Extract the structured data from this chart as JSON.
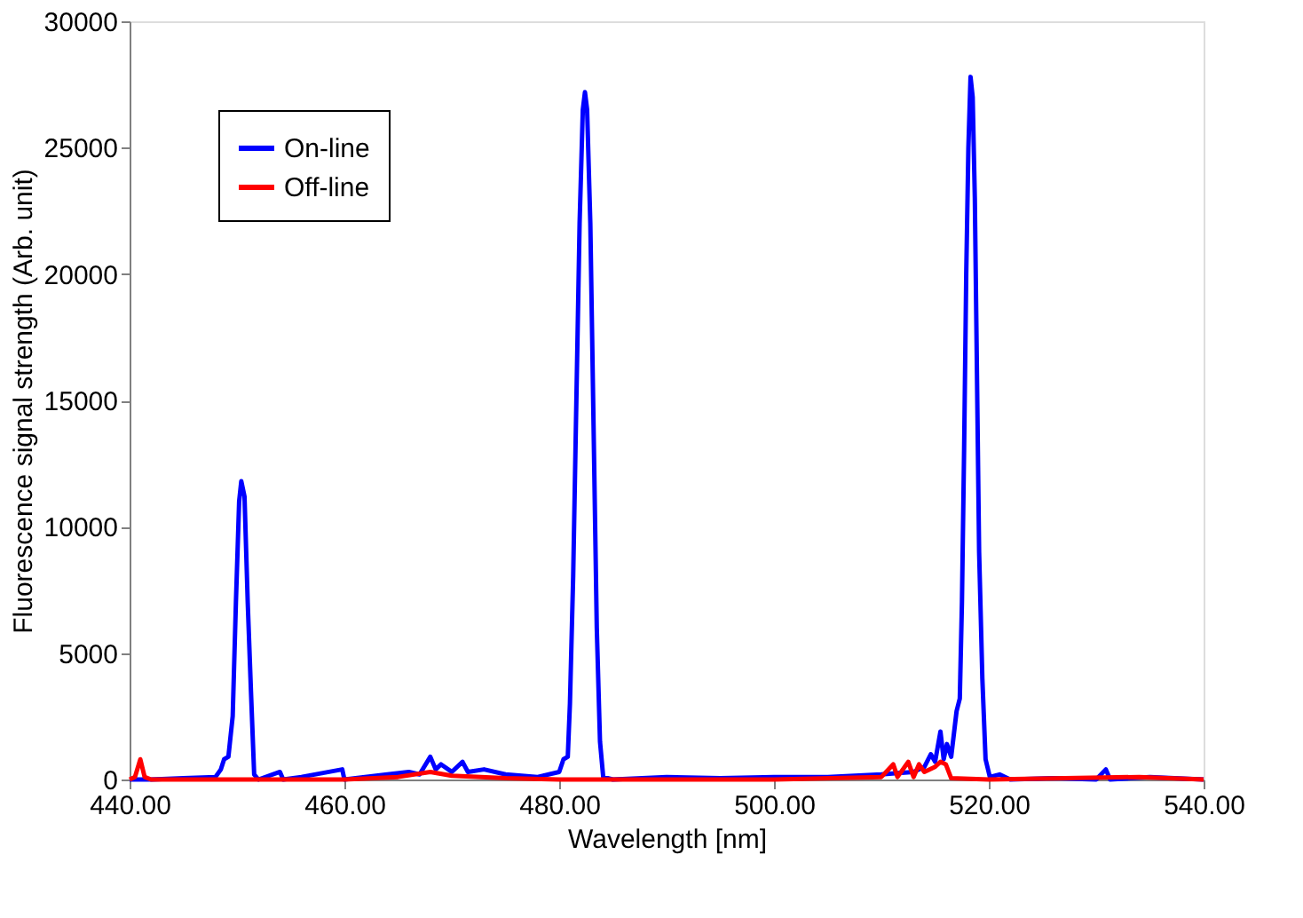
{
  "chart_data": {
    "type": "line",
    "xlabel": "Wavelength [nm]",
    "ylabel": "Fluorescence signal strength (Arb. unit)",
    "xlim": [
      440,
      540
    ],
    "ylim": [
      0,
      30000
    ],
    "xticks": [
      {
        "value": 440,
        "label": "440.00"
      },
      {
        "value": 460,
        "label": "460.00"
      },
      {
        "value": 480,
        "label": "480.00"
      },
      {
        "value": 500,
        "label": "500.00"
      },
      {
        "value": 520,
        "label": "520.00"
      },
      {
        "value": 540,
        "label": "540.00"
      }
    ],
    "yticks": [
      0,
      5000,
      10000,
      15000,
      20000,
      25000,
      30000
    ],
    "grid": false,
    "legend": "top left",
    "marker": "none",
    "line_style": "solid",
    "series": [
      {
        "name": "On-line",
        "color": "#0000ff",
        "x": [
          440,
          442,
          445,
          448,
          448.5,
          448.8,
          449.2,
          449.6,
          449.9,
          450.2,
          450.4,
          450.7,
          451.0,
          451.3,
          451.6,
          452,
          454,
          454.3,
          456,
          459.8,
          460,
          464,
          466,
          467,
          468,
          468.5,
          469,
          470,
          471,
          471.5,
          473,
          475,
          478,
          480,
          480.4,
          480.8,
          481.0,
          481.3,
          481.6,
          481.9,
          482.2,
          482.4,
          482.6,
          482.9,
          483.2,
          483.5,
          483.8,
          484.1,
          485,
          490,
          495,
          500,
          505,
          510,
          513,
          514,
          514.6,
          515,
          515.5,
          515.8,
          516.1,
          516.5,
          517,
          517.3,
          517.5,
          517.7,
          517.9,
          518.1,
          518.3,
          518.5,
          518.7,
          518.9,
          519.1,
          519.4,
          519.7,
          520.1,
          521,
          522,
          526,
          530,
          530.9,
          531.3,
          535,
          540
        ],
        "values": [
          0,
          0,
          50,
          100,
          400,
          800,
          900,
          2500,
          7000,
          11000,
          11800,
          11200,
          7000,
          3500,
          200,
          0,
          300,
          0,
          100,
          400,
          0,
          200,
          300,
          200,
          900,
          400,
          600,
          300,
          700,
          300,
          400,
          200,
          100,
          300,
          800,
          900,
          3000,
          8000,
          15000,
          22000,
          26500,
          27200,
          26500,
          22000,
          14000,
          6000,
          1500,
          100,
          0,
          100,
          50,
          100,
          100,
          200,
          300,
          500,
          1000,
          700,
          1900,
          800,
          1400,
          900,
          2700,
          3200,
          7000,
          13000,
          20000,
          25000,
          27800,
          27000,
          23000,
          16000,
          9000,
          4000,
          800,
          100,
          200,
          0,
          50,
          0,
          400,
          0,
          100,
          0
        ]
      },
      {
        "name": "Off-line",
        "color": "#ff0000",
        "x": [
          440,
          440.5,
          441,
          441.4,
          442,
          460,
          465,
          468,
          470,
          475,
          480,
          500,
          510,
          511.1,
          511.5,
          512.5,
          513,
          513.5,
          514,
          515,
          515.5,
          516,
          516.5,
          520,
          534,
          540
        ],
        "values": [
          0,
          100,
          800,
          100,
          0,
          0,
          100,
          300,
          150,
          50,
          0,
          0,
          100,
          600,
          100,
          700,
          100,
          600,
          300,
          500,
          700,
          600,
          50,
          0,
          100,
          0
        ]
      }
    ]
  }
}
